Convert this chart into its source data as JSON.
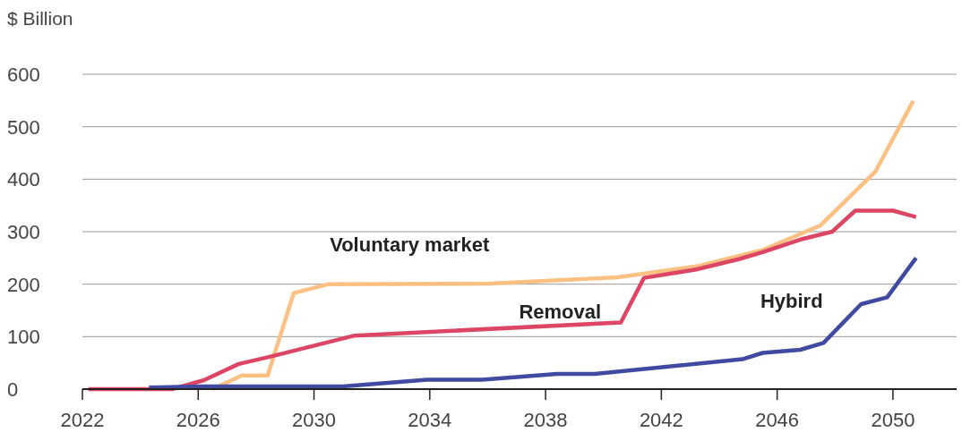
{
  "chart_data": {
    "type": "line",
    "ylabel": "$ Billion",
    "xlim": [
      2022,
      2052.2
    ],
    "xticks": [
      2022,
      2026,
      2030,
      2034,
      2038,
      2042,
      2046,
      2050
    ],
    "ylim": [
      0,
      600
    ],
    "yticks": [
      0,
      100,
      200,
      300,
      400,
      500,
      600
    ],
    "grid": "y",
    "line_style": "solid",
    "marker": "none",
    "series": [
      {
        "name": "Voluntary market",
        "color": "#fdc083",
        "x": [
          2026.5,
          2027.5,
          2028.4,
          2029.3,
          2030.5,
          2036.1,
          2040.5,
          2043.3,
          2045.5,
          2047.5,
          2049.4,
          2050.7
        ],
        "values": [
          0,
          26,
          26,
          183,
          200,
          201,
          213,
          235,
          265,
          312,
          415,
          549
        ]
      },
      {
        "name": "Removal",
        "color": "#dd4565",
        "x": [
          2022.2,
          2025.1,
          2026.2,
          2027.4,
          2028.5,
          2031.4,
          2040.6,
          2041.4,
          2043.2,
          2044.7,
          2045.5,
          2046.8,
          2047.9,
          2048.7,
          2050.0,
          2050.8
        ],
        "values": [
          0,
          0,
          17,
          48,
          62,
          102,
          127,
          212,
          228,
          248,
          261,
          285,
          300,
          340,
          340,
          328
        ]
      },
      {
        "name": "Hybird",
        "color": "#3f4aa0",
        "x": [
          2024.3,
          2026.1,
          2031.0,
          2033.9,
          2035.8,
          2038.4,
          2039.7,
          2044.8,
          2045.5,
          2046.8,
          2047.6,
          2048.9,
          2049.8,
          2050.8
        ],
        "values": [
          3,
          5,
          5,
          18,
          18,
          29,
          29,
          57,
          69,
          75,
          88,
          162,
          175,
          250
        ]
      }
    ]
  }
}
